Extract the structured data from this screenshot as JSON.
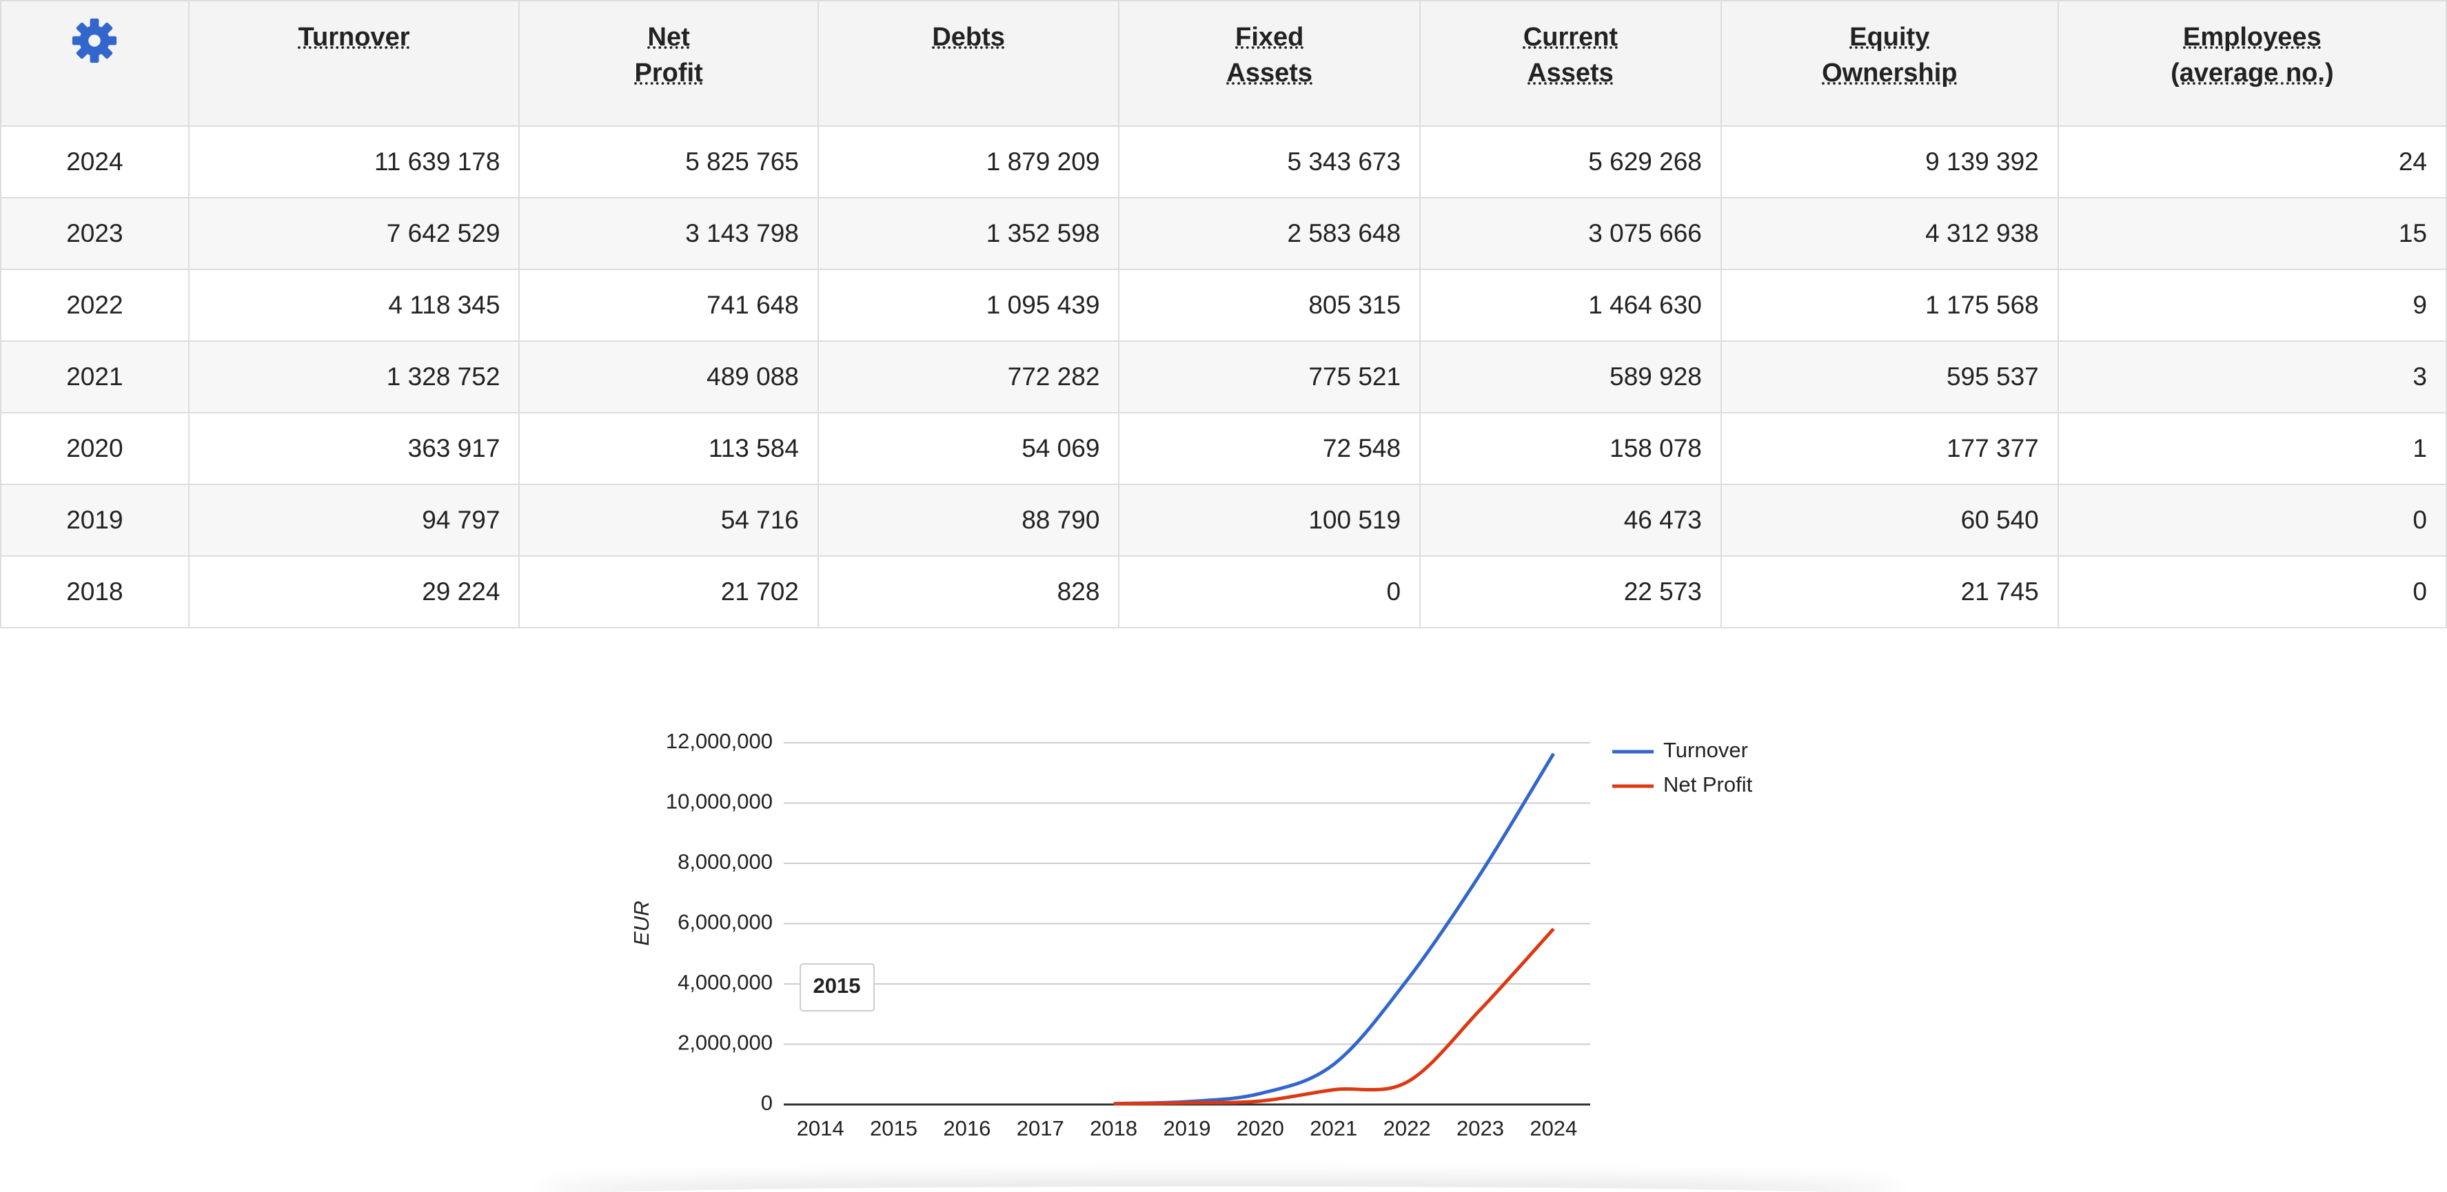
{
  "table": {
    "headers": [
      [
        "Turnover"
      ],
      [
        "Net",
        "Profit"
      ],
      [
        "Debts"
      ],
      [
        "Fixed",
        "Assets"
      ],
      [
        "Current",
        "Assets"
      ],
      [
        "Equity",
        "Ownership"
      ],
      [
        "Employees",
        "(average no.)"
      ]
    ],
    "rows": [
      [
        "2024",
        "11 639 178",
        "5 825 765",
        "1 879 209",
        "5 343 673",
        "5 629 268",
        "9 139 392",
        "24"
      ],
      [
        "2023",
        "7 642 529",
        "3 143 798",
        "1 352 598",
        "2 583 648",
        "3 075 666",
        "4 312 938",
        "15"
      ],
      [
        "2022",
        "4 118 345",
        "741 648",
        "1 095 439",
        "805 315",
        "1 464 630",
        "1 175 568",
        "9"
      ],
      [
        "2021",
        "1 328 752",
        "489 088",
        "772 282",
        "775 521",
        "589 928",
        "595 537",
        "3"
      ],
      [
        "2020",
        "363 917",
        "113 584",
        "54 069",
        "72 548",
        "158 078",
        "177 377",
        "1"
      ],
      [
        "2019",
        "94 797",
        "54 716",
        "88 790",
        "100 519",
        "46 473",
        "60 540",
        "0"
      ],
      [
        "2018",
        "29 224",
        "21 702",
        "828",
        "0",
        "22 573",
        "21 745",
        "0"
      ]
    ]
  },
  "chart_data": {
    "type": "line",
    "y_label": "EUR",
    "tooltip": "2015",
    "x": [
      2014,
      2015,
      2016,
      2017,
      2018,
      2019,
      2020,
      2021,
      2022,
      2023,
      2024
    ],
    "xlim": [
      2013.5,
      2024.5
    ],
    "xticks": [
      2014,
      2015,
      2016,
      2017,
      2018,
      2019,
      2020,
      2021,
      2022,
      2023,
      2024
    ],
    "ylim": [
      0,
      12000000
    ],
    "yticks": [
      0,
      {
        "value": 2000000,
        "label": "2,000,000"
      },
      {
        "value": 4000000,
        "label": "4,000,000"
      },
      {
        "value": 6000000,
        "label": "6,000,000"
      },
      {
        "value": 8000000,
        "label": "8,000,000"
      },
      {
        "value": 10000000,
        "label": "10,000,000"
      },
      {
        "value": 12000000,
        "label": "12,000,000"
      }
    ],
    "grid": true,
    "legend": "right",
    "series": [
      {
        "name": "Turnover",
        "color": "#3366cc",
        "values": [
          null,
          null,
          null,
          null,
          29224,
          94797,
          363917,
          1328752,
          4118345,
          7642529,
          11639178
        ]
      },
      {
        "name": "Net Profit",
        "color": "#dc3912",
        "values": [
          null,
          null,
          null,
          null,
          21702,
          54716,
          113584,
          489088,
          741648,
          3143798,
          5825765
        ]
      }
    ]
  }
}
